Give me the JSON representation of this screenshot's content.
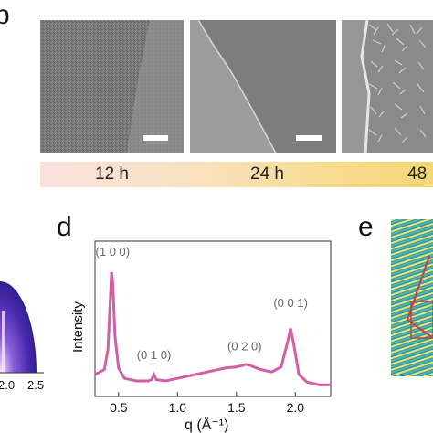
{
  "panel_b": {
    "letter": "b",
    "images": [
      {
        "name": "sem-12h"
      },
      {
        "name": "sem-24h"
      },
      {
        "name": "sem-48h"
      }
    ],
    "timeline": {
      "labels": [
        "12 h",
        "24 h",
        "48"
      ]
    }
  },
  "panel_c": {
    "tick_labels": [
      "2.0",
      "2.5"
    ]
  },
  "panel_d": {
    "letter": "d",
    "ylabel": "Intensity",
    "xlabel": "q (Å⁻¹)"
  },
  "panel_e": {
    "letter": "e"
  },
  "chart_data": {
    "type": "line",
    "title": "",
    "xlabel": "q (Å⁻¹)",
    "ylabel": "Intensity",
    "xlim": [
      0.3,
      2.3
    ],
    "x_ticks": [
      "0.5",
      "1.0",
      "1.5",
      "2.0"
    ],
    "y_ticks_labeled": false,
    "line_color": "#d25fa5",
    "series": [
      {
        "x": [
          0.3,
          0.38,
          0.41,
          0.43,
          0.44,
          0.45,
          0.47,
          0.5,
          0.55,
          0.65,
          0.75,
          0.78,
          0.8,
          0.82,
          0.9,
          1.0,
          1.1,
          1.2,
          1.3,
          1.4,
          1.5,
          1.55,
          1.58,
          1.62,
          1.7,
          1.8,
          1.88,
          1.93,
          1.96,
          1.99,
          2.03,
          2.1,
          2.2,
          2.3
        ],
        "y": [
          0.1,
          0.14,
          0.3,
          0.7,
          0.9,
          0.82,
          0.4,
          0.15,
          0.07,
          0.05,
          0.05,
          0.06,
          0.1,
          0.06,
          0.05,
          0.07,
          0.09,
          0.11,
          0.13,
          0.15,
          0.16,
          0.17,
          0.18,
          0.17,
          0.14,
          0.12,
          0.16,
          0.34,
          0.46,
          0.32,
          0.1,
          0.04,
          0.02,
          0.02
        ]
      }
    ],
    "annotations": [
      {
        "text": "(1 0 0)",
        "x": 0.45,
        "y": 1.03
      },
      {
        "text": "(0 1 0)",
        "x": 0.8,
        "y": 0.22
      },
      {
        "text": "(0 2 0)",
        "x": 1.57,
        "y": 0.29
      },
      {
        "text": "(0 0 1)",
        "x": 1.96,
        "y": 0.63
      }
    ]
  }
}
